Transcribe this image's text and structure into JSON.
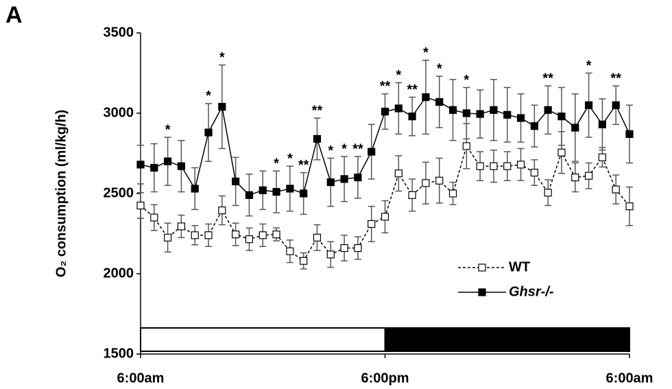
{
  "chart_data": {
    "type": "line",
    "panel_label": "A",
    "y_label": "O₂ consumption (ml/kg/h)",
    "x": [
      0,
      40,
      80,
      120,
      160,
      200,
      240,
      280,
      320,
      360,
      400,
      440,
      480,
      520,
      560,
      600,
      640,
      680,
      720,
      760,
      800,
      840,
      880,
      920,
      960,
      1000,
      1040,
      1080,
      1120,
      1160,
      1200,
      1240,
      1280,
      1320,
      1360,
      1400,
      1440
    ],
    "xlim": [
      0,
      1440
    ],
    "xticks": [
      {
        "value": 0,
        "label": "6:00am"
      },
      {
        "value": 720,
        "label": "6:00pm"
      },
      {
        "value": 1440,
        "label": "6:00am"
      }
    ],
    "ylim": [
      1500,
      3500
    ],
    "yticks": [
      1500,
      2000,
      2500,
      3000,
      3500
    ],
    "series": [
      {
        "name": "WT",
        "color": "#000000",
        "marker_fill": "#ffffff",
        "dashed": true,
        "values": [
          2425,
          2350,
          2225,
          2295,
          2240,
          2240,
          2395,
          2245,
          2215,
          2240,
          2245,
          2140,
          2080,
          2225,
          2120,
          2160,
          2160,
          2310,
          2355,
          2625,
          2490,
          2565,
          2580,
          2500,
          2795,
          2670,
          2670,
          2670,
          2680,
          2630,
          2505,
          2755,
          2600,
          2610,
          2725,
          2525,
          2420
        ],
        "errors": [
          80,
          80,
          90,
          70,
          60,
          70,
          90,
          70,
          70,
          70,
          40,
          70,
          50,
          80,
          80,
          80,
          70,
          110,
          100,
          110,
          100,
          130,
          140,
          70,
          140,
          90,
          100,
          90,
          100,
          80,
          80,
          130,
          90,
          80,
          60,
          90,
          120
        ]
      },
      {
        "name": "Ghsr-/-",
        "color": "#000000",
        "marker_fill": "#000000",
        "dashed": false,
        "values": [
          2680,
          2660,
          2700,
          2670,
          2530,
          2880,
          3040,
          2575,
          2490,
          2520,
          2510,
          2530,
          2500,
          2840,
          2570,
          2590,
          2600,
          2760,
          3010,
          3030,
          2980,
          3100,
          3070,
          3020,
          3000,
          2995,
          3020,
          2990,
          2970,
          2920,
          3020,
          2980,
          2910,
          3050,
          2930,
          3050,
          2870
        ],
        "errors": [
          120,
          150,
          150,
          160,
          130,
          180,
          260,
          150,
          130,
          120,
          130,
          140,
          130,
          130,
          150,
          140,
          130,
          170,
          110,
          160,
          120,
          230,
          160,
          190,
          160,
          150,
          190,
          170,
          150,
          130,
          150,
          180,
          210,
          200,
          160,
          120,
          180
        ]
      }
    ],
    "annotations": [
      {
        "x": 80,
        "text": "*"
      },
      {
        "x": 200,
        "text": "*"
      },
      {
        "x": 240,
        "text": "*"
      },
      {
        "x": 400,
        "text": "*"
      },
      {
        "x": 440,
        "text": "*"
      },
      {
        "x": 480,
        "text": "**"
      },
      {
        "x": 520,
        "text": "**"
      },
      {
        "x": 560,
        "text": "*"
      },
      {
        "x": 600,
        "text": "*"
      },
      {
        "x": 640,
        "text": "**"
      },
      {
        "x": 720,
        "text": "**"
      },
      {
        "x": 760,
        "text": "*"
      },
      {
        "x": 800,
        "text": "**"
      },
      {
        "x": 840,
        "text": "*"
      },
      {
        "x": 880,
        "text": "*"
      },
      {
        "x": 960,
        "text": "*"
      },
      {
        "x": 1200,
        "text": "**"
      },
      {
        "x": 1320,
        "text": "*"
      },
      {
        "x": 1400,
        "text": "**"
      }
    ],
    "light_dark": [
      {
        "start": 0,
        "end": 720,
        "color": "#ffffff"
      },
      {
        "start": 720,
        "end": 1440,
        "color": "#000000"
      }
    ]
  }
}
